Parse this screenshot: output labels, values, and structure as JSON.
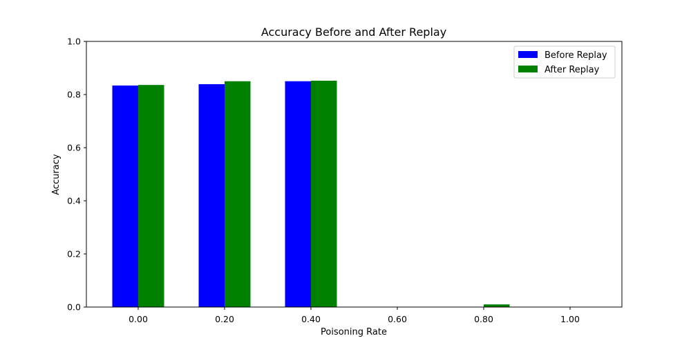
{
  "chart_data": {
    "type": "bar",
    "title": "Accuracy Before and After Replay",
    "xlabel": "Poisoning Rate",
    "ylabel": "Accuracy",
    "categories": [
      "0.00",
      "0.20",
      "0.40",
      "0.60",
      "0.80",
      "1.00"
    ],
    "x": [
      0.0,
      0.2,
      0.4,
      0.6,
      0.8,
      1.0
    ],
    "xlim": [
      -0.12,
      1.12
    ],
    "ylim": [
      0.0,
      1.0
    ],
    "yticks": [
      "0.0",
      "0.2",
      "0.4",
      "0.6",
      "0.8",
      "1.0"
    ],
    "ytick_values": [
      0.0,
      0.2,
      0.4,
      0.6,
      0.8,
      1.0
    ],
    "series": [
      {
        "name": "Before Replay",
        "color": "#0000ff",
        "values": [
          0.834,
          0.839,
          0.85,
          0.0,
          0.0,
          0.0
        ]
      },
      {
        "name": "After Replay",
        "color": "#008000",
        "values": [
          0.836,
          0.85,
          0.852,
          0.0,
          0.01,
          0.0
        ]
      }
    ],
    "grid": false,
    "legend_position": "top-right"
  }
}
